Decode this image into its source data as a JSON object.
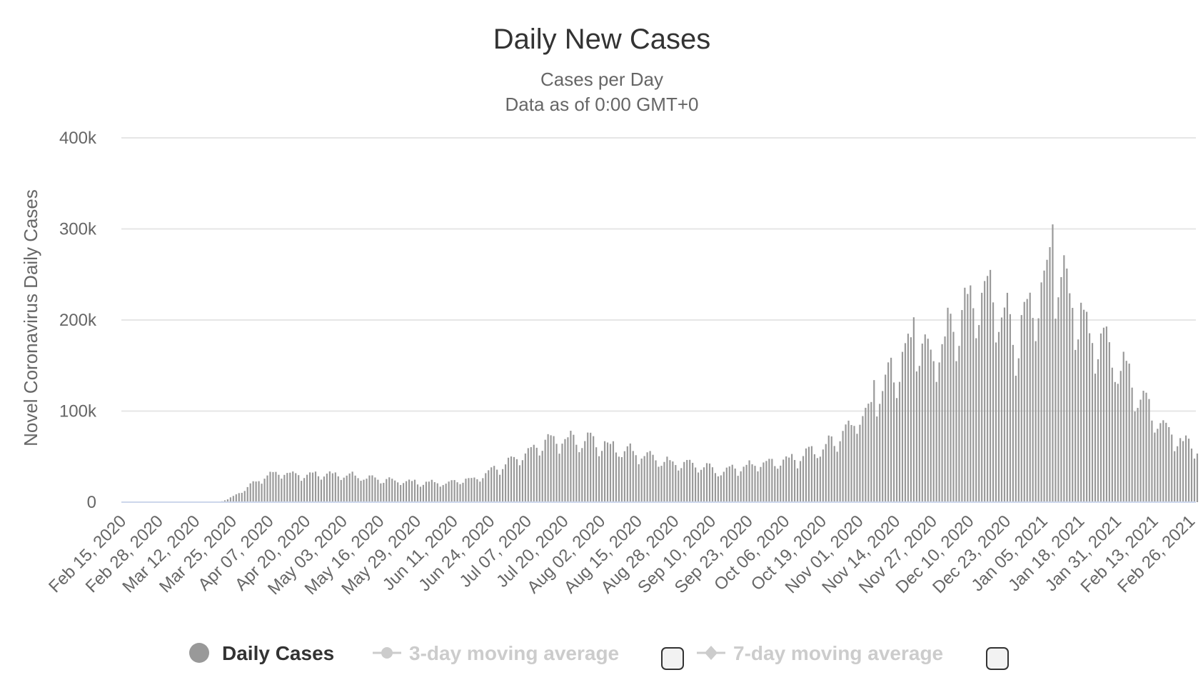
{
  "chart_data": {
    "type": "bar",
    "title": "Daily New Cases",
    "subtitle_lines": [
      "Cases per Day",
      "Data as of 0:00 GMT+0"
    ],
    "ylabel": "Novel Coronavirus Daily Cases",
    "ylim": [
      0,
      400000
    ],
    "yticks": [
      {
        "value": 0,
        "label": "0"
      },
      {
        "value": 100000,
        "label": "100k"
      },
      {
        "value": 200000,
        "label": "200k"
      },
      {
        "value": 300000,
        "label": "300k"
      },
      {
        "value": 400000,
        "label": "400k"
      }
    ],
    "grid": true,
    "x_start": "2020-02-15",
    "x_end": "2021-02-28",
    "xtick_labels": [
      "Feb 15, 2020",
      "Feb 28, 2020",
      "Mar 12, 2020",
      "Mar 25, 2020",
      "Apr 07, 2020",
      "Apr 20, 2020",
      "May 03, 2020",
      "May 16, 2020",
      "May 29, 2020",
      "Jun 11, 2020",
      "Jun 24, 2020",
      "Jul 07, 2020",
      "Jul 20, 2020",
      "Aug 02, 2020",
      "Aug 15, 2020",
      "Aug 28, 2020",
      "Sep 10, 2020",
      "Sep 23, 2020",
      "Oct 06, 2020",
      "Oct 19, 2020",
      "Nov 01, 2020",
      "Nov 14, 2020",
      "Nov 27, 2020",
      "Dec 10, 2020",
      "Dec 23, 2020",
      "Jan 05, 2021",
      "Jan 18, 2021",
      "Jan 31, 2021",
      "Feb 13, 2021",
      "Feb 26, 2021"
    ],
    "series": [
      {
        "name": "Daily Cases",
        "color": "#999999",
        "anchors": [
          [
            "2020-02-15",
            0
          ],
          [
            "2020-03-01",
            0
          ],
          [
            "2020-03-15",
            0
          ],
          [
            "2020-03-20",
            300
          ],
          [
            "2020-03-23",
            3000
          ],
          [
            "2020-03-26",
            8000
          ],
          [
            "2020-03-29",
            14000
          ],
          [
            "2020-04-01",
            20000
          ],
          [
            "2020-04-05",
            28000
          ],
          [
            "2020-04-10",
            32000
          ],
          [
            "2020-04-20",
            30000
          ],
          [
            "2020-05-01",
            30000
          ],
          [
            "2020-05-10",
            27000
          ],
          [
            "2020-05-20",
            23000
          ],
          [
            "2020-06-01",
            21000
          ],
          [
            "2020-06-10",
            21000
          ],
          [
            "2020-06-20",
            27000
          ],
          [
            "2020-06-28",
            40000
          ],
          [
            "2020-07-05",
            52000
          ],
          [
            "2020-07-15",
            67000
          ],
          [
            "2020-07-25",
            70000
          ],
          [
            "2020-08-05",
            60000
          ],
          [
            "2020-08-15",
            52000
          ],
          [
            "2020-08-25",
            44000
          ],
          [
            "2020-09-05",
            40000
          ],
          [
            "2020-09-12",
            33000
          ],
          [
            "2020-09-20",
            38000
          ],
          [
            "2020-10-01",
            42000
          ],
          [
            "2020-10-10",
            48000
          ],
          [
            "2020-10-20",
            60000
          ],
          [
            "2020-10-28",
            78000
          ],
          [
            "2020-11-05",
            105000
          ],
          [
            "2020-11-12",
            140000
          ],
          [
            "2020-11-20",
            170000
          ],
          [
            "2020-11-28",
            160000
          ],
          [
            "2020-12-05",
            195000
          ],
          [
            "2020-12-12",
            215000
          ],
          [
            "2020-12-18",
            225000
          ],
          [
            "2020-12-26",
            180000
          ],
          [
            "2021-01-02",
            210000
          ],
          [
            "2021-01-09",
            250000
          ],
          [
            "2021-01-15",
            220000
          ],
          [
            "2021-01-22",
            175000
          ],
          [
            "2021-01-28",
            165000
          ],
          [
            "2021-02-03",
            140000
          ],
          [
            "2021-02-09",
            110000
          ],
          [
            "2021-02-16",
            85000
          ],
          [
            "2021-02-22",
            65000
          ],
          [
            "2021-02-27",
            62000
          ]
        ],
        "spikes": [
          [
            "2021-01-08",
            305000
          ],
          [
            "2021-01-07",
            280000
          ],
          [
            "2020-12-17",
            255000
          ],
          [
            "2020-12-10",
            238000
          ],
          [
            "2020-11-20",
            203000
          ],
          [
            "2020-11-06",
            134000
          ]
        ]
      },
      {
        "name": "3-day moving average",
        "visible": false
      },
      {
        "name": "7-day moving average",
        "visible": false
      }
    ]
  },
  "legend": {
    "daily_cases": "Daily Cases",
    "avg3": "3-day moving average",
    "avg7": "7-day moving average"
  }
}
